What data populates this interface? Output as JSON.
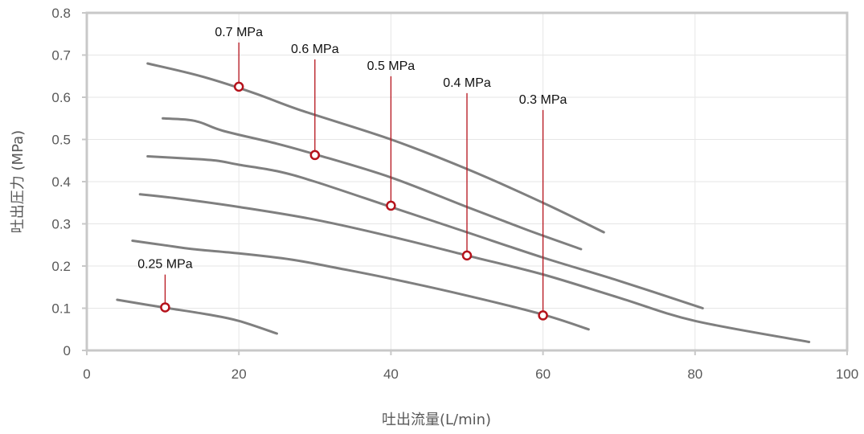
{
  "chart_data": {
    "type": "line",
    "xlabel": "吐出流量(L/min)",
    "ylabel": "吐出圧力 (MPa)",
    "xlim": [
      0,
      100
    ],
    "ylim": [
      0,
      0.8
    ],
    "x_ticks": [
      {
        "value": 0,
        "label": "0"
      },
      {
        "value": 20,
        "label": "20"
      },
      {
        "value": 40,
        "label": "40"
      },
      {
        "value": 60,
        "label": "60"
      },
      {
        "value": 80,
        "label": "80"
      },
      {
        "value": 100,
        "label": "100"
      }
    ],
    "y_ticks": [
      {
        "value": 0,
        "label": "0"
      },
      {
        "value": 0.1,
        "label": "0.1"
      },
      {
        "value": 0.2,
        "label": "0.2"
      },
      {
        "value": 0.3,
        "label": "0.3"
      },
      {
        "value": 0.4,
        "label": "0.4"
      },
      {
        "value": 0.5,
        "label": "0.5"
      },
      {
        "value": 0.6,
        "label": "0.6"
      },
      {
        "value": 0.7,
        "label": "0.7"
      },
      {
        "value": 0.8,
        "label": "0.8"
      }
    ],
    "grid": true,
    "series": [
      {
        "name": "0.7 MPa",
        "points": [
          [
            8,
            0.68
          ],
          [
            15,
            0.65
          ],
          [
            22,
            0.61
          ],
          [
            28,
            0.57
          ],
          [
            40,
            0.5
          ],
          [
            50,
            0.43
          ],
          [
            60,
            0.35
          ],
          [
            68,
            0.28
          ]
        ]
      },
      {
        "name": "0.6 MPa",
        "points": [
          [
            10,
            0.55
          ],
          [
            13,
            0.547
          ],
          [
            15,
            0.54
          ],
          [
            18,
            0.52
          ],
          [
            25,
            0.49
          ],
          [
            30,
            0.465
          ],
          [
            40,
            0.41
          ],
          [
            50,
            0.34
          ],
          [
            58,
            0.285
          ],
          [
            65,
            0.24
          ]
        ]
      },
      {
        "name": "0.5 MPa",
        "points": [
          [
            8,
            0.46
          ],
          [
            13,
            0.455
          ],
          [
            17,
            0.45
          ],
          [
            20,
            0.44
          ],
          [
            25,
            0.425
          ],
          [
            30,
            0.4
          ],
          [
            40,
            0.34
          ],
          [
            50,
            0.28
          ],
          [
            60,
            0.22
          ],
          [
            70,
            0.165
          ],
          [
            81,
            0.1
          ]
        ]
      },
      {
        "name": "0.4 MPa",
        "points": [
          [
            7,
            0.37
          ],
          [
            12,
            0.36
          ],
          [
            20,
            0.34
          ],
          [
            30,
            0.31
          ],
          [
            40,
            0.27
          ],
          [
            50,
            0.225
          ],
          [
            60,
            0.18
          ],
          [
            70,
            0.125
          ],
          [
            80,
            0.07
          ],
          [
            95,
            0.02
          ]
        ]
      },
      {
        "name": "0.3 MPa",
        "points": [
          [
            6,
            0.26
          ],
          [
            10,
            0.25
          ],
          [
            14,
            0.24
          ],
          [
            20,
            0.23
          ],
          [
            27,
            0.215
          ],
          [
            33,
            0.195
          ],
          [
            40,
            0.17
          ],
          [
            50,
            0.13
          ],
          [
            60,
            0.085
          ],
          [
            66,
            0.05
          ]
        ]
      },
      {
        "name": "0.25 MPa",
        "points": [
          [
            4,
            0.12
          ],
          [
            10,
            0.102
          ],
          [
            16,
            0.085
          ],
          [
            20,
            0.07
          ],
          [
            25,
            0.04
          ]
        ]
      }
    ],
    "annotations": [
      {
        "label": "0.7 MPa",
        "point": [
          20,
          0.625
        ],
        "label_y": 0.745
      },
      {
        "label": "0.6 MPa",
        "point": [
          30,
          0.463
        ],
        "label_y": 0.705
      },
      {
        "label": "0.5 MPa",
        "point": [
          40,
          0.343
        ],
        "label_y": 0.665
      },
      {
        "label": "0.4 MPa",
        "point": [
          50,
          0.225
        ],
        "label_y": 0.625
      },
      {
        "label": "0.3 MPa",
        "point": [
          60,
          0.083
        ],
        "label_y": 0.585
      },
      {
        "label": "0.25 MPa",
        "point": [
          10.3,
          0.102
        ],
        "label_y": 0.195
      }
    ],
    "colors": {
      "curve": "#7f7f7f",
      "callout": "#b5121b",
      "grid": "#e6e6e6",
      "frame": "#c8c8c8"
    }
  }
}
